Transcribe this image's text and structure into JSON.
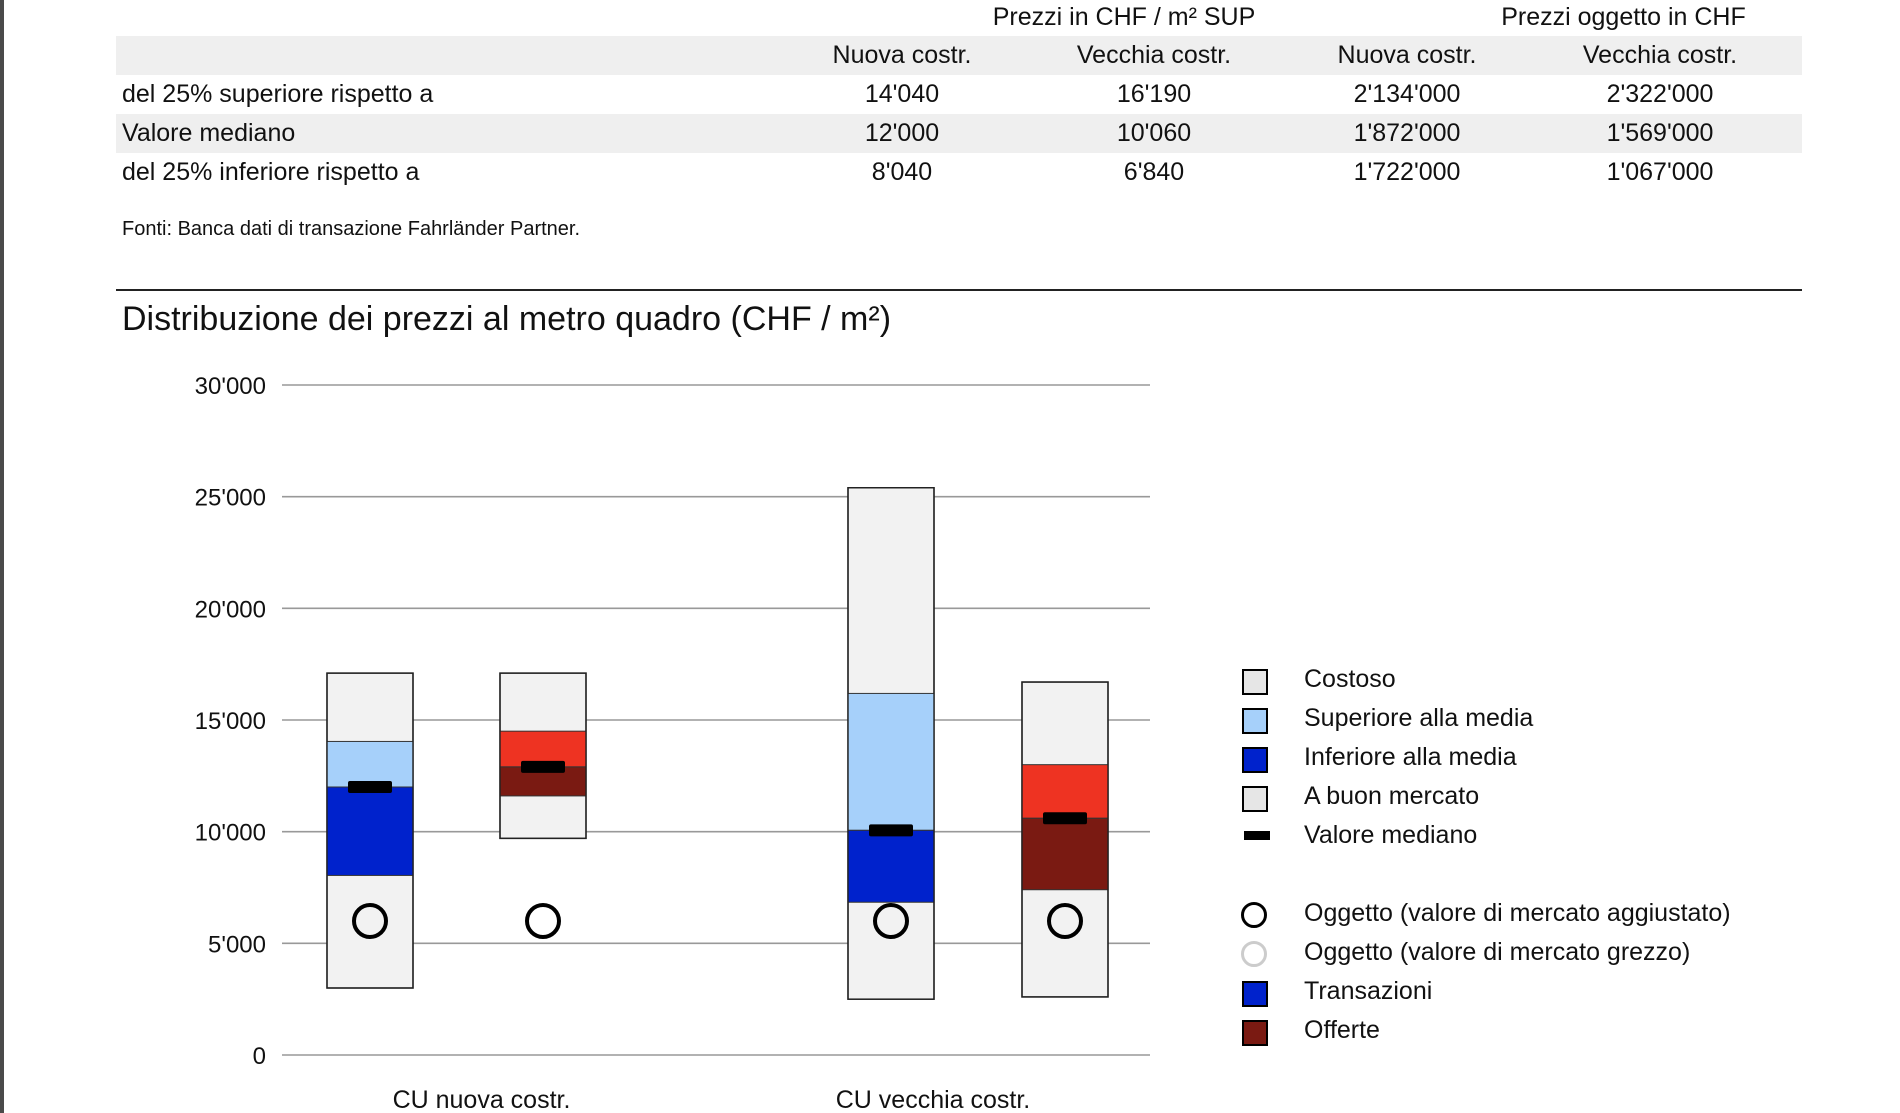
{
  "price_table": {
    "group_headers": [
      "Prezzi in CHF / m² SUP",
      "Prezzi oggetto in CHF"
    ],
    "column_headers": [
      "Nuova costr.",
      "Vecchia costr.",
      "Nuova costr.",
      "Vecchia costr."
    ],
    "rows": [
      {
        "label": "del 25% superiore rispetto a",
        "values": [
          "14'040",
          "16'190",
          "2'134'000",
          "2'322'000"
        ]
      },
      {
        "label": "Valore mediano",
        "values": [
          "12'000",
          "10'060",
          "1'872'000",
          "1'569'000"
        ]
      },
      {
        "label": "del 25% inferiore rispetto a",
        "values": [
          "8'040",
          "6'840",
          "1'722'000",
          "1'067'000"
        ]
      }
    ]
  },
  "sources": "Fonti: Banca dati di transazione Fahrländer Partner.",
  "chart_data": {
    "type": "boxplot",
    "title": "Distribuzione dei prezzi al metro quadro (CHF / m²)",
    "ylim": [
      0,
      30000
    ],
    "y_ticks": [
      0,
      5000,
      10000,
      15000,
      20000,
      25000,
      30000
    ],
    "y_tick_labels": [
      "0",
      "5'000",
      "10'000",
      "15'000",
      "20'000",
      "25'000",
      "30'000"
    ],
    "grid": true,
    "categories": [
      "CU nuova costr.",
      "CU vecchia costr."
    ],
    "boxes": [
      {
        "category": "CU nuova costr.",
        "series": "Transazioni",
        "min": 3000,
        "q1": 8040,
        "median": 12000,
        "q3": 14040,
        "max": 17100,
        "object_value": 6000
      },
      {
        "category": "CU nuova costr.",
        "series": "Offerte",
        "min": 9700,
        "q1": 11600,
        "median": 12900,
        "q3": 14500,
        "max": 17100,
        "object_value": 6000
      },
      {
        "category": "CU vecchia costr.",
        "series": "Transazioni",
        "min": 2500,
        "q1": 6840,
        "median": 10060,
        "q3": 16190,
        "max": 25400,
        "object_value": 6000
      },
      {
        "category": "CU vecchia costr.",
        "series": "Offerte",
        "min": 2600,
        "q1": 7400,
        "median": 10600,
        "q3": 13000,
        "max": 16700,
        "object_value": 6000
      }
    ],
    "colors": {
      "outer": "#f2f2f2",
      "transactions_upper": "#a6d0fa",
      "transactions_lower": "#0022cc",
      "offers_upper": "#ee3322",
      "offers_lower": "#7a1a12",
      "median": "#000000",
      "grid": "#999999"
    },
    "legend_position": "right",
    "legend": [
      {
        "label": "Costoso",
        "symbol": "square",
        "color": "#e6e6e6"
      },
      {
        "label": "Superiore alla media",
        "symbol": "square",
        "color": "#a6d0fa"
      },
      {
        "label": "Inferiore alla media",
        "symbol": "square",
        "color": "#0022cc"
      },
      {
        "label": "A buon mercato",
        "symbol": "square",
        "color": "#e6e6e6"
      },
      {
        "label": "Valore mediano",
        "symbol": "dash",
        "color": "#000000"
      },
      {
        "label": "Oggetto (valore di mercato aggiustato)",
        "symbol": "circle",
        "color": "#000000"
      },
      {
        "label": "Oggetto (valore di mercato grezzo)",
        "symbol": "circle",
        "color": "#cccccc"
      },
      {
        "label": "Transazioni",
        "symbol": "square",
        "color": "#0022cc"
      },
      {
        "label": "Offerte",
        "symbol": "square",
        "color": "#7a1a12"
      }
    ]
  }
}
